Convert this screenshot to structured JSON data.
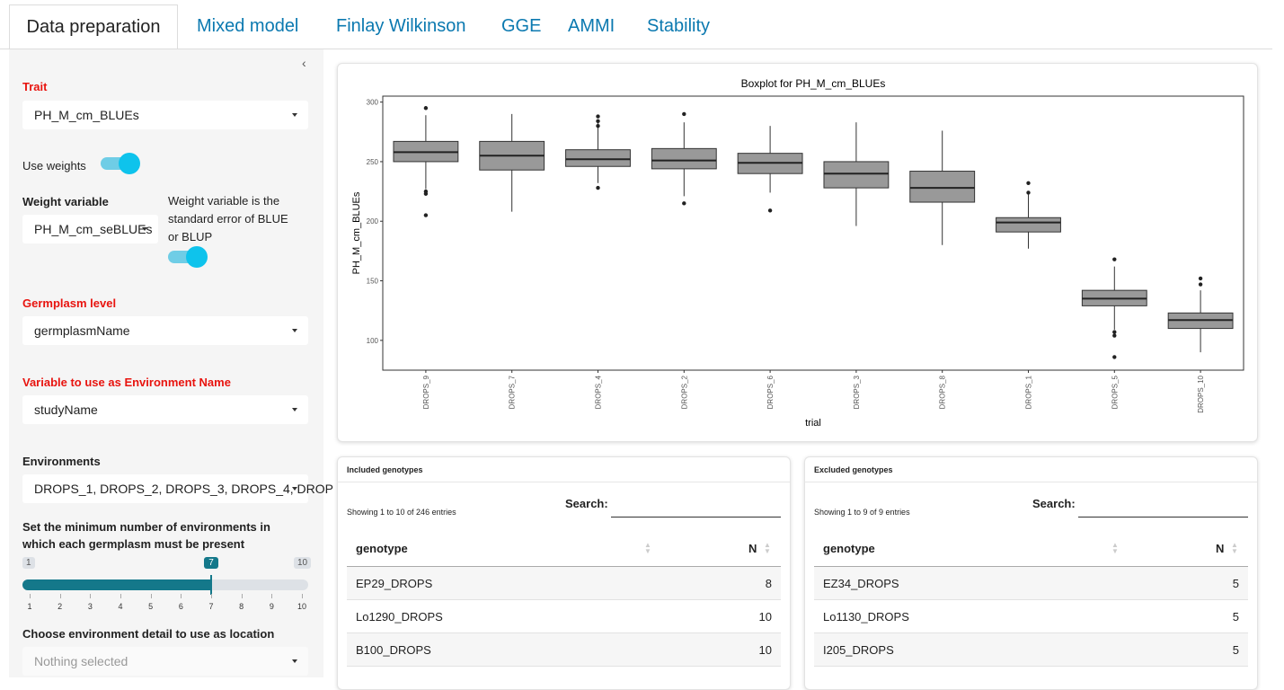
{
  "tabs": [
    "Data preparation",
    "Mixed model",
    "Finlay Wilkinson",
    "GGE",
    "AMMI",
    "Stability"
  ],
  "sidebar": {
    "trait": {
      "label": "Trait",
      "value": "PH_M_cm_BLUEs"
    },
    "use_weights": {
      "label": "Use weights"
    },
    "weight_variable": {
      "label": "Weight variable",
      "value": "PH_M_cm_seBLUEs",
      "help": "Weight variable is the standard error of BLUE or BLUP"
    },
    "germplasm_level": {
      "label": "Germplasm level",
      "value": "germplasmName"
    },
    "environment_name": {
      "label": "Variable to use as Environment Name",
      "value": "studyName"
    },
    "environments": {
      "label": "Environments",
      "value": "DROPS_1, DROPS_2, DROPS_3, DROPS_4, DROP"
    },
    "min_environments": {
      "label": "Set the minimum number of environments in which each germplasm must be present",
      "min": 1,
      "max": 10,
      "value": 7,
      "ticks": [
        1,
        2,
        3,
        4,
        5,
        6,
        7,
        8,
        9,
        10
      ]
    },
    "location": {
      "label": "Choose environment detail to use as location",
      "value": "Nothing selected"
    }
  },
  "chart_data": {
    "type": "box",
    "title": "Boxplot for PH_M_cm_BLUEs",
    "xlabel": "trial",
    "ylabel": "PH_M_cm_BLUEs",
    "color": "#999999",
    "categories": [
      "DROPS_9",
      "DROPS_7",
      "DROPS_4",
      "DROPS_2",
      "DROPS_6",
      "DROPS_3",
      "DROPS_8",
      "DROPS_1",
      "DROPS_5",
      "DROPS_10"
    ],
    "boxes": [
      {
        "min": 227,
        "q1": 250,
        "median": 258,
        "q3": 267,
        "max": 289,
        "outliers": [
          295,
          225,
          223,
          205
        ]
      },
      {
        "min": 208,
        "q1": 243,
        "median": 255,
        "q3": 267,
        "max": 290,
        "outliers": []
      },
      {
        "min": 232,
        "q1": 246,
        "median": 252,
        "q3": 260,
        "max": 283,
        "outliers": [
          288,
          284,
          280,
          228
        ]
      },
      {
        "min": 221,
        "q1": 244,
        "median": 251,
        "q3": 261,
        "max": 283,
        "outliers": [
          290,
          215
        ]
      },
      {
        "min": 224,
        "q1": 240,
        "median": 249,
        "q3": 257,
        "max": 280,
        "outliers": [
          209
        ]
      },
      {
        "min": 196,
        "q1": 228,
        "median": 240,
        "q3": 250,
        "max": 283,
        "outliers": []
      },
      {
        "min": 180,
        "q1": 216,
        "median": 228,
        "q3": 242,
        "max": 276,
        "outliers": []
      },
      {
        "min": 177,
        "q1": 191,
        "median": 199,
        "q3": 203,
        "max": 225,
        "outliers": [
          232,
          224
        ]
      },
      {
        "min": 109,
        "q1": 129,
        "median": 135,
        "q3": 142,
        "max": 162,
        "outliers": [
          168,
          107,
          104,
          86
        ]
      },
      {
        "min": 90,
        "q1": 110,
        "median": 117,
        "q3": 123,
        "max": 142,
        "outliers": [
          152,
          147
        ]
      }
    ],
    "ylim": [
      75,
      305
    ],
    "yticks": [
      100,
      150,
      200,
      250,
      300
    ]
  },
  "tables": [
    {
      "title": "Included genotypes",
      "info": "Showing 1 to 10 of 246 entries",
      "search_label": "Search:",
      "columns": [
        "genotype",
        "N"
      ],
      "rows": [
        [
          "EP29_DROPS",
          8
        ],
        [
          "Lo1290_DROPS",
          10
        ],
        [
          "B100_DROPS",
          10
        ]
      ]
    },
    {
      "title": "Excluded genotypes",
      "info": "Showing 1 to 9 of 9 entries",
      "search_label": "Search:",
      "columns": [
        "genotype",
        "N"
      ],
      "rows": [
        [
          "EZ34_DROPS",
          5
        ],
        [
          "Lo1130_DROPS",
          5
        ],
        [
          "I205_DROPS",
          5
        ]
      ]
    }
  ]
}
